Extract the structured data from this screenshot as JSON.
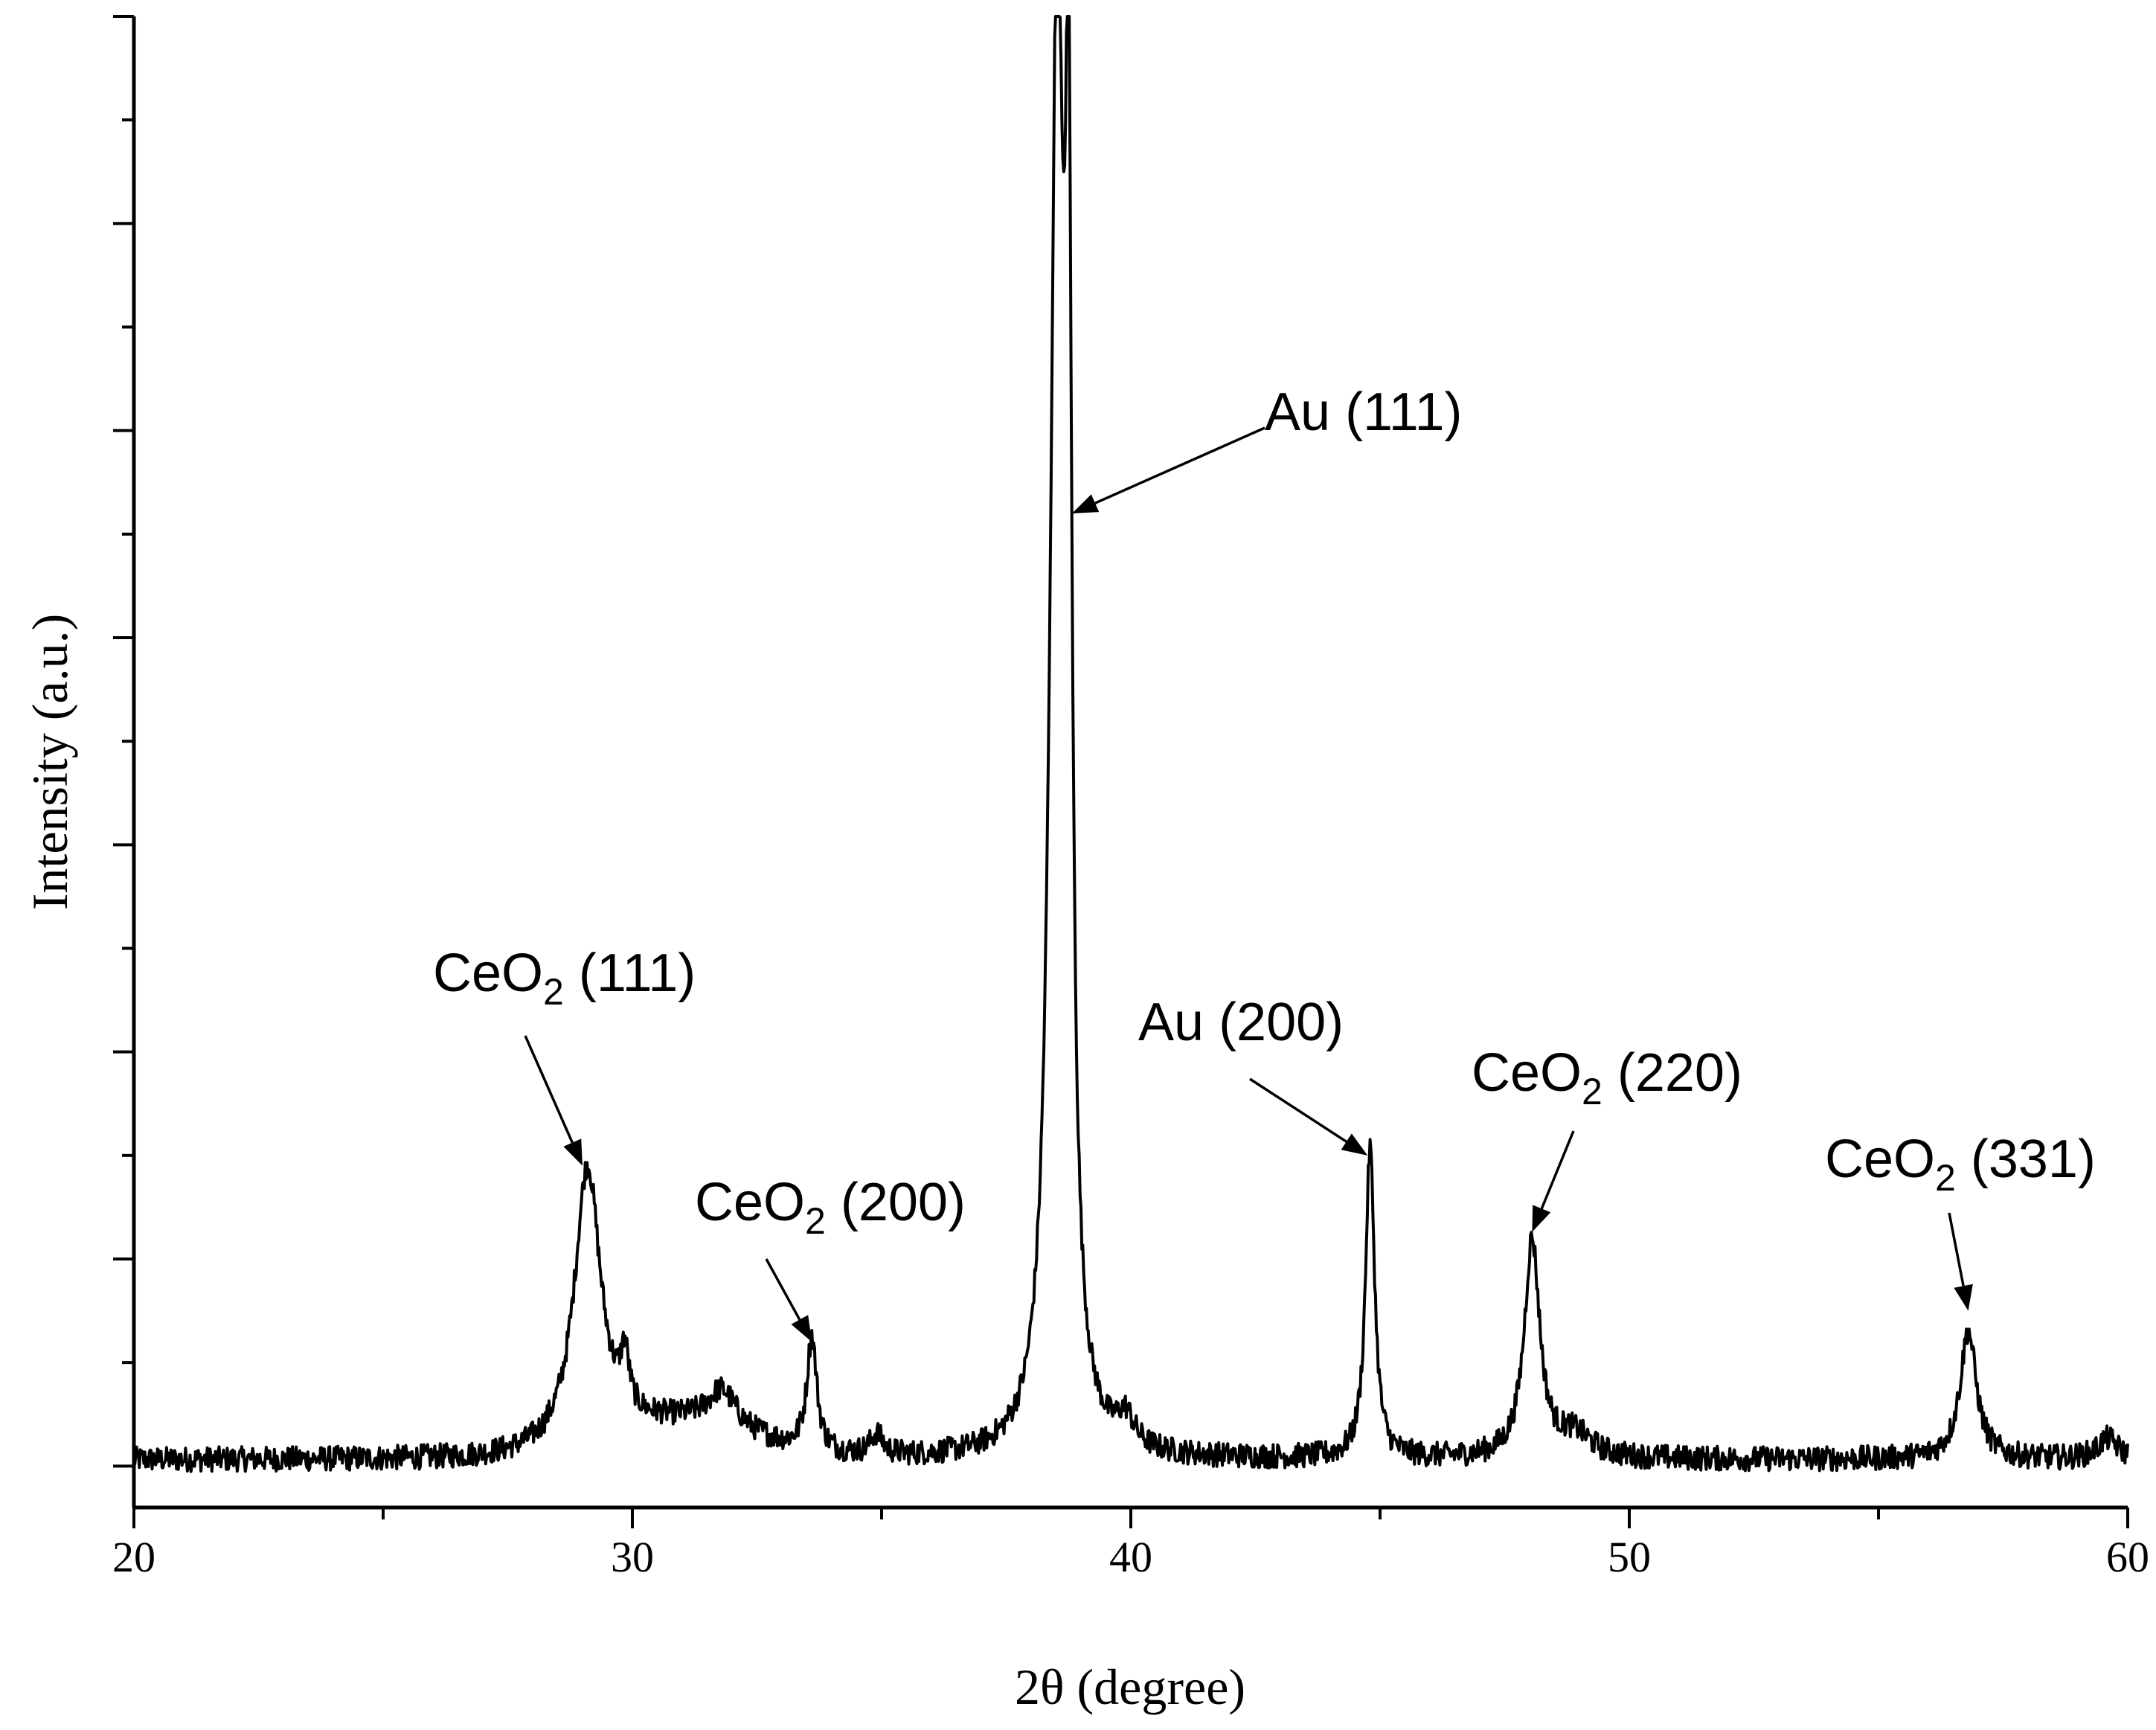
{
  "chart_data": {
    "type": "line",
    "xlabel": "2θ (degree)",
    "ylabel": "Intensity (a.u.)",
    "xlim": [
      20,
      60
    ],
    "ylim": [
      -2,
      70
    ],
    "x_ticks": [
      20,
      30,
      40,
      50,
      60
    ],
    "x_tick_labels": [
      "20",
      "30",
      "40",
      "50",
      "60"
    ],
    "x_minor_step": 5,
    "y_ticks": [
      0,
      10,
      20,
      30,
      40,
      50,
      60,
      70
    ],
    "grid": false,
    "legend": "none",
    "line_color": "#000000",
    "series": [
      {
        "peaks": [
          {
            "x": 29.1,
            "height": 13.5,
            "width": 0.32
          },
          {
            "x": 29.85,
            "height": 2.6,
            "width": 0.1
          },
          {
            "x": 31.8,
            "height": 1.8,
            "width": 0.35
          },
          {
            "x": 33.6,
            "height": 5.5,
            "width": 0.12
          },
          {
            "x": 34.9,
            "height": 1.0,
            "width": 0.15
          },
          {
            "x": 38.52,
            "height": 70.0,
            "width": 0.16
          },
          {
            "x": 38.75,
            "height": 50.0,
            "width": 0.08
          },
          {
            "x": 39.9,
            "height": 1.4,
            "width": 0.2
          },
          {
            "x": 44.8,
            "height": 15.0,
            "width": 0.11
          },
          {
            "x": 48.05,
            "height": 10.5,
            "width": 0.19
          },
          {
            "x": 48.9,
            "height": 1.1,
            "width": 0.4
          },
          {
            "x": 56.8,
            "height": 6.2,
            "width": 0.2
          },
          {
            "x": 59.6,
            "height": 1.0,
            "width": 0.25
          }
        ],
        "baseline": 0.3,
        "bump": {
          "x": 31.0,
          "height": 1.6,
          "width": 2.0
        },
        "noise": 0.6
      }
    ],
    "annotations": [
      {
        "main": "Au (111)",
        "sub": "",
        "rest": "",
        "tip": [
          38.82,
          46
        ]
      },
      {
        "main": "CeO",
        "sub": "2",
        "rest": " (111)",
        "tip": [
          29.0,
          14.5
        ]
      },
      {
        "main": "CeO",
        "sub": "2",
        "rest": " (200)",
        "tip": [
          33.6,
          6.0
        ]
      },
      {
        "main": "Au (200)",
        "sub": "",
        "rest": "",
        "tip": [
          44.75,
          15.0
        ]
      },
      {
        "main": "CeO",
        "sub": "2",
        "rest": " (220)",
        "tip": [
          48.05,
          11.3
        ]
      },
      {
        "main": "CeO",
        "sub": "2",
        "rest": " (331)",
        "tip": [
          56.8,
          7.5
        ]
      }
    ]
  }
}
